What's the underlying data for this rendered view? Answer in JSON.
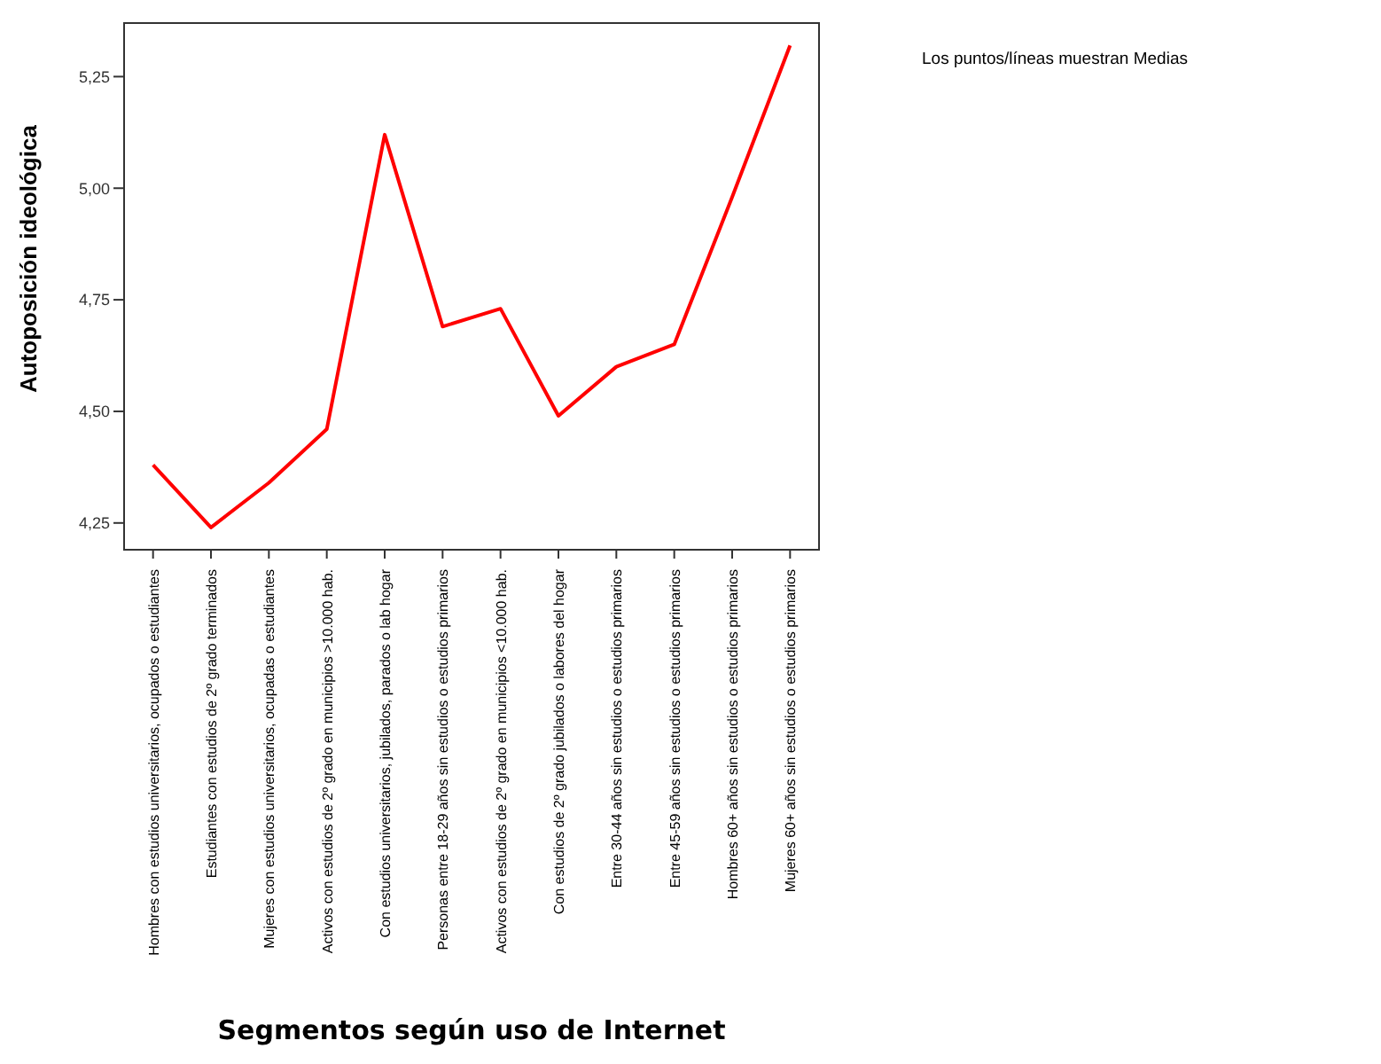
{
  "chart_data": {
    "type": "line",
    "xlabel": "Segmentos según uso de Internet",
    "ylabel": "Autoposición ideológica",
    "categories": [
      "Hombres con estudios universitarios, ocupados o estudiantes",
      "Estudiantes con estudios de 2º grado terminados",
      "Mujeres con estudios universitarios, ocupadas o estudiantes",
      "Activos con estudios de 2º grado en municipios >10.000 hab.",
      "Con estudios universitarios, jubilados, parados o lab hogar",
      "Personas entre 18-29 años sin estudios o estudios primarios",
      "Activos con estudios de 2º grado en municipios <10.000 hab.",
      "Con estudios de 2º grado jubilados o labores del hogar",
      "Entre 30-44 años sin estudios o estudios primarios",
      "Entre 45-59 años sin estudios o estudios primarios",
      "Hombres 60+ años sin estudios o estudios primarios",
      "Mujeres 60+ años sin estudios o estudios primarios"
    ],
    "series": [
      {
        "color": "#ff0000",
        "values": [
          4.38,
          4.24,
          4.34,
          4.46,
          5.12,
          4.69,
          4.73,
          4.49,
          4.6,
          4.65,
          4.98,
          5.32
        ]
      }
    ],
    "ylim": [
      4.19,
      5.37
    ],
    "yticks": [
      {
        "value": 4.25,
        "label": "4,25"
      },
      {
        "value": 4.5,
        "label": "4,50"
      },
      {
        "value": 4.75,
        "label": "4,75"
      },
      {
        "value": 5.0,
        "label": "5,00"
      },
      {
        "value": 5.25,
        "label": "5,25"
      }
    ],
    "annotations": [
      "Los puntos/líneas muestran Medias"
    ],
    "grid": false,
    "legend": false,
    "marker": "none",
    "line_style": "solid"
  }
}
